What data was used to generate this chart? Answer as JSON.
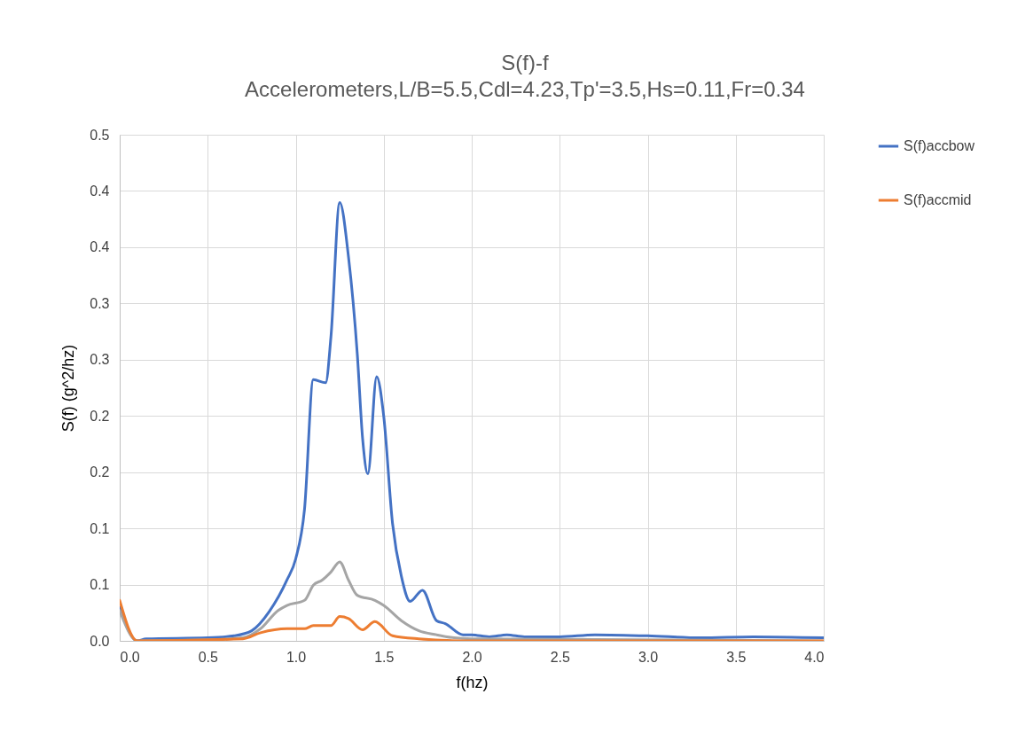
{
  "chart_data": {
    "type": "line",
    "title": "S(f)-f",
    "subtitle": "Accelerometers,L/B=5.5,Cdl=4.23,Tp'=3.5,Hs=0.11,Fr=0.34",
    "xlabel": "f(hz)",
    "ylabel": "S(f) (g^2/hz)",
    "xlim": [
      0,
      4
    ],
    "xticks": [
      {
        "value": 0,
        "label": "0.0"
      },
      {
        "value": 0.5,
        "label": "0.5"
      },
      {
        "value": 1,
        "label": "1.0"
      },
      {
        "value": 1.5,
        "label": "1.5"
      },
      {
        "value": 2,
        "label": "2.0"
      },
      {
        "value": 2.5,
        "label": "2.5"
      },
      {
        "value": 3,
        "label": "3.0"
      },
      {
        "value": 3.5,
        "label": "3.5"
      },
      {
        "value": 4,
        "label": "4.0"
      }
    ],
    "ylim": [
      0,
      0.5
    ],
    "yticks": [
      {
        "value": 0,
        "label": "0.0"
      },
      {
        "value": 0.0556,
        "label": "0.1"
      },
      {
        "value": 0.1111,
        "label": "0.1"
      },
      {
        "value": 0.1667,
        "label": "0.2"
      },
      {
        "value": 0.2222,
        "label": "0.2"
      },
      {
        "value": 0.2778,
        "label": "0.3"
      },
      {
        "value": 0.3333,
        "label": "0.3"
      },
      {
        "value": 0.3889,
        "label": "0.4"
      },
      {
        "value": 0.4444,
        "label": "0.4"
      },
      {
        "value": 0.5,
        "label": "0.5"
      }
    ],
    "grid": true,
    "legend": "right",
    "line_style": "solid",
    "series": [
      {
        "name": "S(f)accbow",
        "color": "#4472c4",
        "x": [
          0,
          0.1,
          0.15,
          0.5,
          0.65,
          0.75,
          0.85,
          0.95,
          1.0,
          1.05,
          1.1,
          1.17,
          1.2,
          1.25,
          1.3,
          1.35,
          1.38,
          1.41,
          1.46,
          1.5,
          1.55,
          1.6,
          1.65,
          1.72,
          1.8,
          1.85,
          1.95,
          2.0,
          2.1,
          2.2,
          2.3,
          2.5,
          2.7,
          3.0,
          3.3,
          3.6,
          4.0
        ],
        "values": [
          0.033,
          0,
          0.002,
          0.003,
          0.005,
          0.01,
          0.029,
          0.06,
          0.081,
          0.13,
          0.258,
          0.255,
          0.3,
          0.433,
          0.379,
          0.283,
          0.2,
          0.165,
          0.261,
          0.222,
          0.116,
          0.064,
          0.039,
          0.05,
          0.02,
          0.017,
          0.006,
          0.006,
          0.004,
          0.006,
          0.004,
          0.004,
          0.006,
          0.005,
          0.003,
          0.004,
          0.003
        ]
      },
      {
        "color": "#a5a5a5",
        "x": [
          0,
          0.1,
          0.5,
          0.7,
          0.8,
          0.9,
          0.95,
          1.05,
          1.1,
          1.15,
          1.2,
          1.25,
          1.3,
          1.35,
          1.45,
          1.5,
          1.6,
          1.7,
          1.8,
          1.9,
          2.0,
          4.0
        ],
        "values": [
          0.03,
          0,
          0.001,
          0.003,
          0.012,
          0.03,
          0.035,
          0.04,
          0.055,
          0.06,
          0.068,
          0.078,
          0.06,
          0.045,
          0.04,
          0.035,
          0.02,
          0.01,
          0.006,
          0.003,
          0.002,
          0
        ]
      },
      {
        "name": "S(f)accmid",
        "color": "#ed7d31",
        "x": [
          0,
          0.1,
          0.7,
          0.8,
          0.95,
          1.05,
          1.1,
          1.2,
          1.25,
          1.3,
          1.38,
          1.45,
          1.55,
          1.7,
          2.0,
          4.0
        ],
        "values": [
          0.04,
          0,
          0.002,
          0.008,
          0.012,
          0.012,
          0.015,
          0.015,
          0.024,
          0.022,
          0.011,
          0.019,
          0.005,
          0.002,
          0,
          0
        ]
      }
    ]
  }
}
